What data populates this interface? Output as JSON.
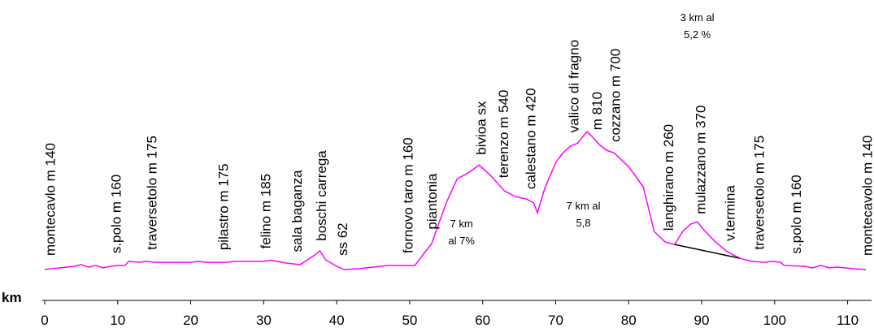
{
  "chart_data": {
    "type": "line",
    "x_label": "km",
    "xlim": [
      0,
      113.5
    ],
    "xticks": [
      0,
      10,
      20,
      30,
      40,
      50,
      60,
      70,
      80,
      90,
      100,
      110
    ],
    "ylim": [
      0,
      1450
    ],
    "series": [
      {
        "color": "#ff00ff",
        "x": [
          0,
          2,
          4,
          5,
          6,
          7,
          8,
          9,
          10,
          11,
          11.5,
          13,
          14,
          15,
          20,
          21,
          22,
          25,
          26,
          30,
          31,
          33,
          35,
          36,
          37,
          37.7,
          38.5,
          40,
          41,
          43,
          45,
          47,
          50.7,
          53,
          55,
          56.5,
          58,
          59.5,
          61,
          63,
          64.5,
          66,
          67,
          67.5,
          68.5,
          70,
          71,
          72,
          73,
          74,
          74.3,
          75,
          76,
          77,
          78,
          80,
          82,
          83.5,
          85,
          86.3,
          87.4,
          88.5,
          89.4,
          90.2,
          91.9,
          93.5,
          95.2,
          96.9,
          98.6,
          99.7,
          100.8,
          101.3,
          104.1,
          105.2,
          106.3,
          107.5,
          108.6,
          110.8,
          112.5
        ],
        "values": [
          140,
          148,
          156,
          164,
          152,
          160,
          148,
          156,
          160,
          160,
          180,
          175,
          180,
          175,
          175,
          180,
          175,
          175,
          180,
          180,
          185,
          172,
          164,
          187,
          211,
          231,
          187,
          156,
          140,
          144,
          152,
          160,
          160,
          266,
          463,
          581,
          609,
          648,
          600,
          522,
          494,
          483,
          463,
          416,
          534,
          660,
          707,
          739,
          754,
          798,
          810,
          786,
          747,
          719,
          707,
          640,
          542,
          325,
          274,
          262,
          325,
          361,
          372,
          337,
          274,
          227,
          195,
          180,
          175,
          180,
          175,
          160,
          156,
          148,
          160,
          148,
          152,
          144,
          140
        ]
      },
      {
        "color": "#000000",
        "x": [
          86.3,
          95.2
        ],
        "values": [
          262,
          195
        ]
      }
    ],
    "annotations": [
      {
        "text": "montecavlo m 140",
        "x": 0.8
      },
      {
        "text": "s.polo m 160",
        "x": 9.8
      },
      {
        "text": "traversetolo m 175",
        "x": 14.7
      },
      {
        "text": "pilastro m 175",
        "x": 24.5
      },
      {
        "text": "felino m 185",
        "x": 30.3
      },
      {
        "text": "sala baganza",
        "x": 34.6
      },
      {
        "text": "boschi carrega",
        "x": 37.9
      },
      {
        "text": "ss 62",
        "x": 40.8
      },
      {
        "text": "fornovo taro m 160",
        "x": 49.8
      },
      {
        "text": "piantonia",
        "x": 53.1
      },
      {
        "text": "bivioa sx",
        "x": 59.8
      },
      {
        "text": "terenzo m 540",
        "x": 62.9
      },
      {
        "text": "calestano m 420",
        "x": 66.6
      },
      {
        "text": "valico di fragno",
        "x": 72.5
      },
      {
        "text": "m 810",
        "x": 75.7
      },
      {
        "text": "cozzano m 700",
        "x": 78.2
      },
      {
        "text": "langhirano m 260",
        "x": 85.5
      },
      {
        "text": "mulazzano m 370",
        "x": 89.9
      },
      {
        "text": "v.termina",
        "x": 93.9
      },
      {
        "text": "traversetolo m 175",
        "x": 97.9
      },
      {
        "text": "s.polo m 160",
        "x": 103
      },
      {
        "text": "montecavolo m 140",
        "x": 112.7
      }
    ],
    "notes": [
      {
        "x": 57.1,
        "lines": [
          "7 km",
          "al 7%"
        ]
      },
      {
        "x": 73.8,
        "lines": [
          "7 km al",
          "5,8"
        ]
      },
      {
        "x": 89.4,
        "lines": [
          "3  km al",
          "5,2 %"
        ]
      }
    ]
  }
}
